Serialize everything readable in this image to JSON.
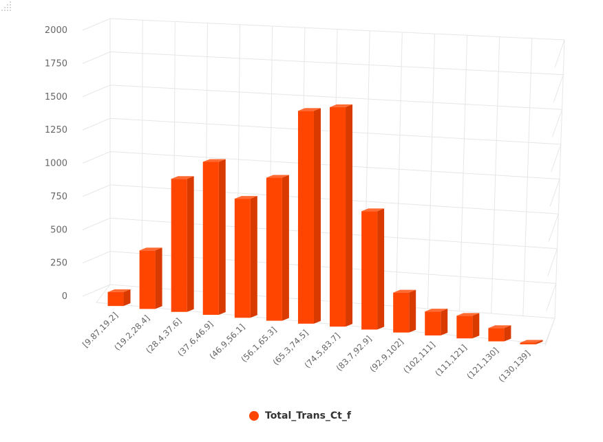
{
  "chart_data": {
    "type": "bar",
    "categories": [
      "[9.87,19.2]",
      "(19.2,28.4]",
      "(28.4,37.6]",
      "(37.6,46.9]",
      "(46.9,56.1]",
      "(56.1,65.3]",
      "(65.3,74.5]",
      "(74.5,83.7]",
      "(83.7,92.9]",
      "(92.9,102]",
      "(102,111]",
      "(111,121]",
      "(121,130]",
      "(130,139]"
    ],
    "series": [
      {
        "name": "Total_Trans_Ct_f",
        "values": [
          105,
          440,
          1000,
          1150,
          895,
          1075,
          1600,
          1650,
          890,
          300,
          180,
          170,
          100,
          12
        ]
      }
    ],
    "ylim": [
      0,
      2000
    ],
    "yticks": [
      0,
      250,
      500,
      750,
      1000,
      1250,
      1500,
      1750,
      2000
    ],
    "grid": true,
    "legend": "bottom-center",
    "colors": {
      "bar_front": "#ff4500",
      "bar_side": "#d93a00",
      "bar_top": "#ff6a33",
      "grid": "#e6e6e6",
      "axis_text": "#666666"
    }
  }
}
